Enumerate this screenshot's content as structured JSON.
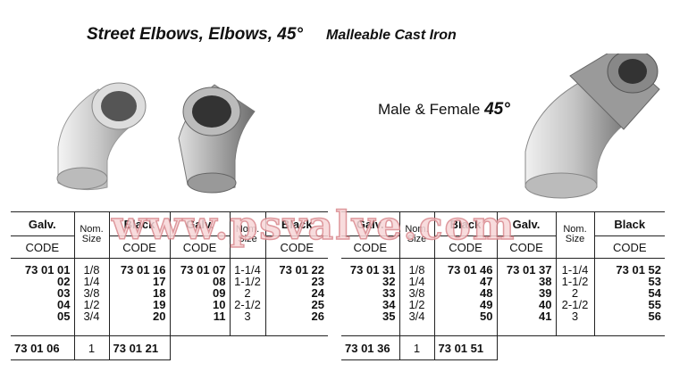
{
  "header": {
    "title": "Street Elbows, Elbows, 45°",
    "material": "Malleable Cast Iron",
    "subtitle_prefix": "Male & Female",
    "subtitle_angle": "45°"
  },
  "watermark": "www.psvalve.com",
  "images": [
    "galvanized-45-elbow",
    "black-45-elbow",
    "street-45-elbow"
  ],
  "tables": [
    {
      "headers": {
        "galv": "Galv.",
        "black": "Black",
        "code": "CODE",
        "nom": "Nom. Size"
      },
      "left": {
        "galv": [
          "73 01 01",
          "02",
          "03",
          "04",
          "05"
        ],
        "sizes": [
          "1/8",
          "1/4",
          "3/8",
          "1/2",
          "3/4"
        ],
        "black": [
          "73 01 16",
          "17",
          "18",
          "19",
          "20"
        ]
      },
      "right": {
        "galv": [
          "73 01 07",
          "08",
          "09",
          "10",
          "11"
        ],
        "sizes": [
          "1-1/4",
          "1-1/2",
          "2",
          "2-1/2",
          "3"
        ],
        "black": [
          "73 01 22",
          "23",
          "24",
          "25",
          "26"
        ]
      },
      "last": {
        "galv": "73 01 06",
        "size": "1",
        "black": "73 01 21"
      }
    },
    {
      "headers": {
        "galv": "Galv.",
        "black": "Black",
        "code": "CODE",
        "nom": "Nom. Size"
      },
      "left": {
        "galv": [
          "73 01 31",
          "32",
          "33",
          "34",
          "35"
        ],
        "sizes": [
          "1/8",
          "1/4",
          "3/8",
          "1/2",
          "3/4"
        ],
        "black": [
          "73 01 46",
          "47",
          "48",
          "49",
          "50"
        ]
      },
      "right": {
        "galv": [
          "73 01 37",
          "38",
          "39",
          "40",
          "41"
        ],
        "sizes": [
          "1-1/4",
          "1-1/2",
          "2",
          "2-1/2",
          "3"
        ],
        "black": [
          "73 01 52",
          "53",
          "54",
          "55",
          "56"
        ]
      },
      "last": {
        "galv": "73 01 36",
        "size": "1",
        "black": "73 01 51"
      }
    }
  ]
}
